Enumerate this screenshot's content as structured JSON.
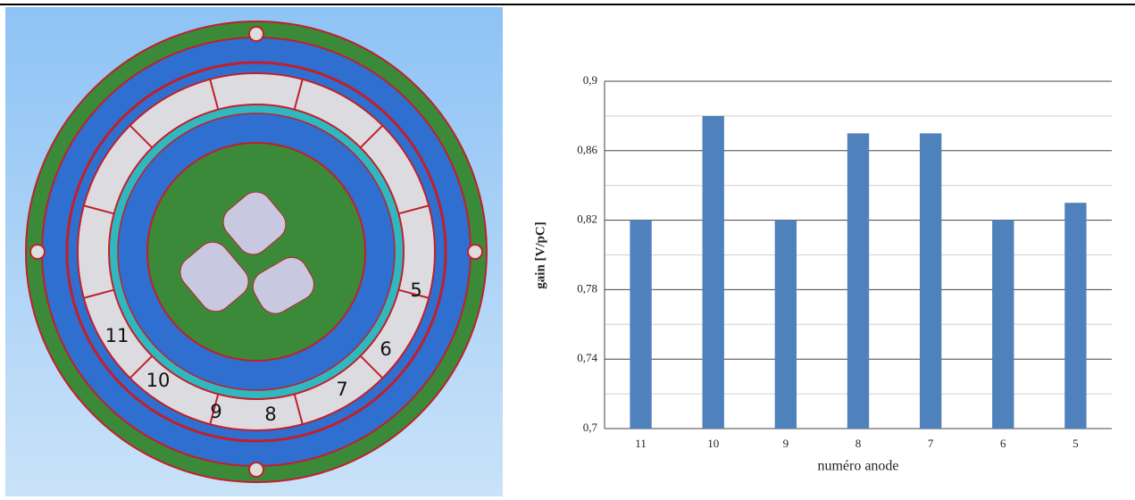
{
  "image": {
    "anode_labels": [
      "5",
      "6",
      "7",
      "8",
      "9",
      "10",
      "11"
    ]
  },
  "chart_data": {
    "type": "bar",
    "categories": [
      "11",
      "10",
      "9",
      "8",
      "7",
      "6",
      "5"
    ],
    "values": [
      0.82,
      0.88,
      0.82,
      0.87,
      0.87,
      0.82,
      0.83
    ],
    "color": "#4f81bd",
    "y_label": "gain [V/pC]",
    "x_label": "numéro anode",
    "ylim": [
      0.7,
      0.9
    ],
    "yticks": [
      {
        "value": 0.7,
        "label": "0,7"
      },
      {
        "value": 0.74,
        "label": "0,74"
      },
      {
        "value": 0.78,
        "label": "0,78"
      },
      {
        "value": 0.82,
        "label": "0,82"
      },
      {
        "value": 0.86,
        "label": "0,86"
      },
      {
        "value": 0.9,
        "label": "0,9"
      }
    ],
    "minor_yticks": [
      0.72,
      0.76,
      0.8,
      0.84,
      0.88
    ],
    "grid": true
  }
}
